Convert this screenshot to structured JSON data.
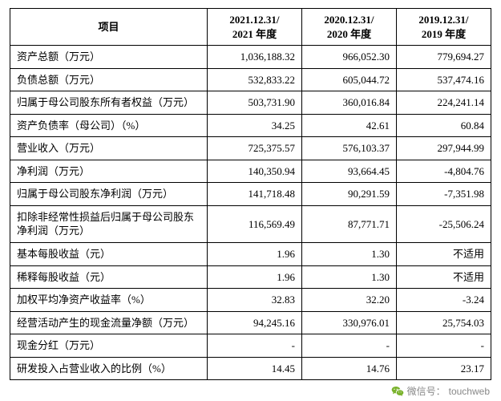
{
  "table": {
    "columns": [
      "项目",
      "2021.12.31/\n2021 年度",
      "2020.12.31/\n2020 年度",
      "2019.12.31/\n2019 年度"
    ],
    "rows": [
      [
        "资产总额（万元）",
        "1,036,188.32",
        "966,052.30",
        "779,694.27"
      ],
      [
        "负债总额（万元）",
        "532,833.22",
        "605,044.72",
        "537,474.16"
      ],
      [
        "归属于母公司股东所有者权益（万元）",
        "503,731.90",
        "360,016.84",
        "224,241.14"
      ],
      [
        "资产负债率（母公司）（%）",
        "34.25",
        "42.61",
        "60.84"
      ],
      [
        "营业收入（万元）",
        "725,375.57",
        "576,103.37",
        "297,944.99"
      ],
      [
        "净利润（万元）",
        "140,350.94",
        "93,664.45",
        "-4,804.76"
      ],
      [
        "归属于母公司股东净利润（万元）",
        "141,718.48",
        "90,291.59",
        "-7,351.98"
      ],
      [
        "扣除非经常性损益后归属于母公司股东净利润（万元）",
        "116,569.49",
        "87,771.71",
        "-25,506.24"
      ],
      [
        "基本每股收益（元）",
        "1.96",
        "1.30",
        "不适用"
      ],
      [
        "稀释每股收益（元）",
        "1.96",
        "1.30",
        "不适用"
      ],
      [
        "加权平均净资产收益率（%）",
        "32.83",
        "32.20",
        "-3.24"
      ],
      [
        "经营活动产生的现金流量净额（万元）",
        "94,245.16",
        "330,976.01",
        "25,754.03"
      ],
      [
        "现金分红（万元）",
        "-",
        "-",
        "-"
      ],
      [
        "研发投入占营业收入的比例（%）",
        "14.45",
        "14.76",
        "23.17"
      ]
    ],
    "border_color": "#000000",
    "font_size": 13,
    "header_font_weight": "bold"
  },
  "footer": {
    "label": "微信号：",
    "value": "touchweb",
    "icon_color": "#7bb32e",
    "text_color": "#888888"
  }
}
